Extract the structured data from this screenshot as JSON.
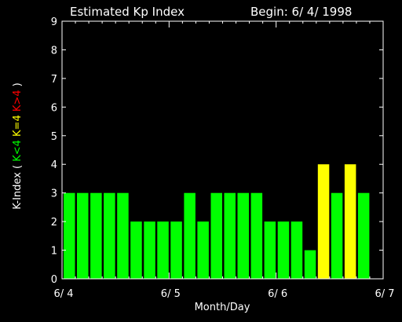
{
  "chart_data": {
    "type": "bar",
    "title": "Estimated Kp Index",
    "begin_label": "Begin: 6/ 4/ 1998",
    "xlabel": "Month/Day",
    "ylabel_parts": [
      {
        "text": "K-Index (",
        "color": "#ffffff"
      },
      {
        "text": "K<4",
        "color": "#00ff00"
      },
      {
        "text": "K=4",
        "color": "#ffff00"
      },
      {
        "text": "K>4",
        "color": "#ff0000"
      },
      {
        "text": ")",
        "color": "#ffffff"
      }
    ],
    "ylim": [
      0,
      9
    ],
    "yticks": [
      "0",
      "1",
      "2",
      "3",
      "4",
      "5",
      "6",
      "7",
      "8",
      "9"
    ],
    "x_tick_labels": [
      "6/ 4",
      "6/ 5",
      "6/ 6",
      "6/ 7"
    ],
    "bars_per_day": 8,
    "values": [
      3,
      3,
      3,
      3,
      3,
      2,
      2,
      2,
      2,
      3,
      2,
      3,
      3,
      3,
      3,
      2,
      2,
      2,
      1,
      4,
      3,
      4,
      3
    ],
    "colors": {
      "below4": "#00ff00",
      "equal4": "#ffff00",
      "above4": "#ff0000",
      "axis": "#ffffff",
      "background": "#000000"
    }
  }
}
